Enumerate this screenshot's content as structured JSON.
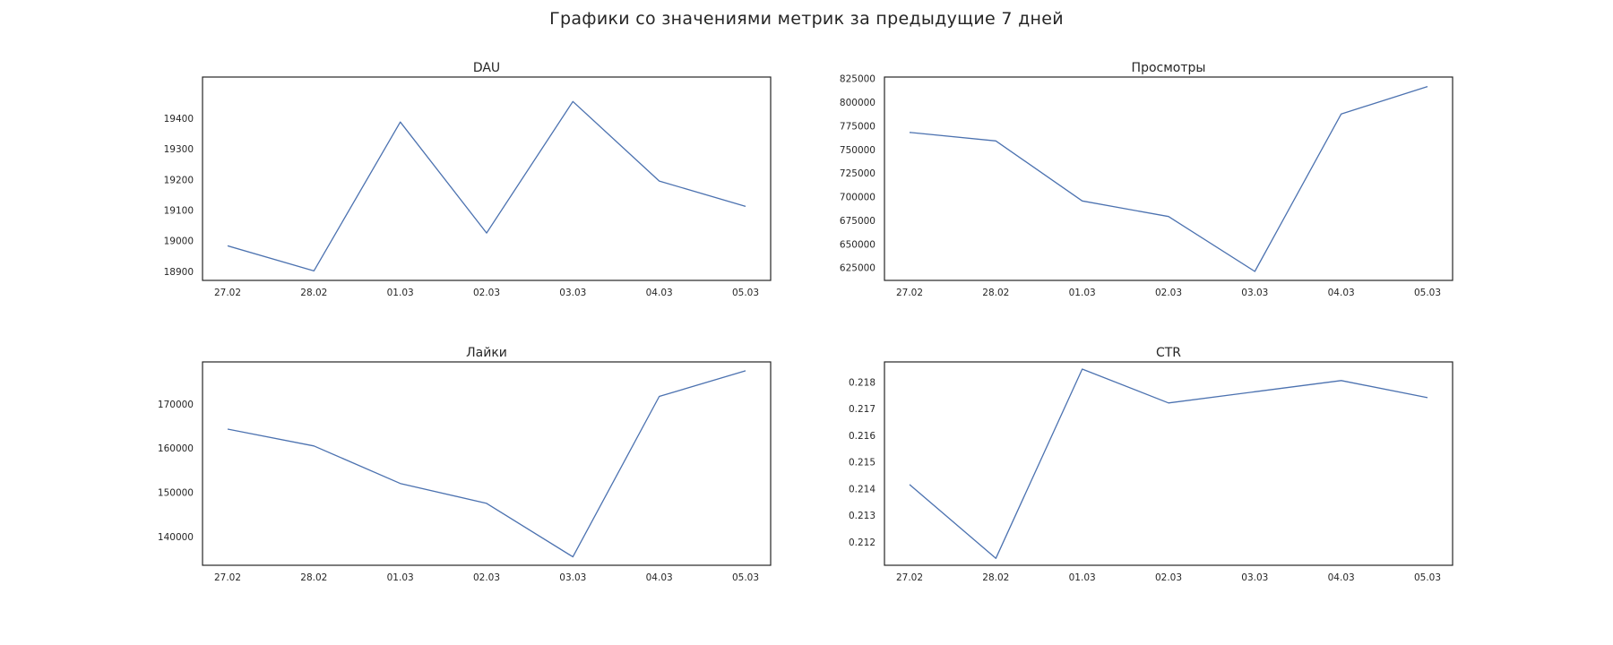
{
  "suptitle": "Графики со значениями метрик за предыдущие 7 дней",
  "colors": {
    "line": "#4c72b0",
    "frame": "#262626"
  },
  "chart_data": [
    {
      "type": "line",
      "title": "DAU",
      "categories": [
        "27.02",
        "28.02",
        "01.03",
        "02.03",
        "03.03",
        "04.03",
        "05.03"
      ],
      "series": [
        {
          "values": [
            18983,
            18901,
            19388,
            19025,
            19455,
            19195,
            19112
          ]
        }
      ],
      "ylim": [
        18870,
        19535
      ],
      "yticks": [
        18900,
        19000,
        19100,
        19200,
        19300,
        19400
      ],
      "ytick_labels": [
        "18900",
        "19000",
        "19100",
        "19200",
        "19300",
        "19400"
      ],
      "grid": false
    },
    {
      "type": "line",
      "title": "Просмотры",
      "categories": [
        "27.02",
        "28.02",
        "01.03",
        "02.03",
        "03.03",
        "04.03",
        "05.03"
      ],
      "series": [
        {
          "values": [
            768000,
            759000,
            695500,
            679000,
            621000,
            787500,
            816500
          ]
        }
      ],
      "ylim": [
        611500,
        826500
      ],
      "yticks": [
        625000,
        650000,
        675000,
        700000,
        725000,
        750000,
        775000,
        800000,
        825000
      ],
      "ytick_labels": [
        "625000",
        "650000",
        "675000",
        "700000",
        "725000",
        "750000",
        "775000",
        "800000",
        "825000"
      ],
      "grid": false
    },
    {
      "type": "line",
      "title": "Лайки",
      "categories": [
        "27.02",
        "28.02",
        "01.03",
        "02.03",
        "03.03",
        "04.03",
        "05.03"
      ],
      "series": [
        {
          "values": [
            164300,
            160500,
            152000,
            147500,
            135400,
            171700,
            177500
          ]
        }
      ],
      "ylim": [
        133500,
        179500
      ],
      "yticks": [
        140000,
        150000,
        160000,
        170000
      ],
      "ytick_labels": [
        "140000",
        "150000",
        "160000",
        "170000"
      ],
      "grid": false
    },
    {
      "type": "line",
      "title": "CTR",
      "categories": [
        "27.02",
        "28.02",
        "01.03",
        "02.03",
        "03.03",
        "04.03",
        "05.03"
      ],
      "series": [
        {
          "values": [
            0.21415,
            0.21138,
            0.21848,
            0.21721,
            0.21763,
            0.21805,
            0.21741
          ]
        }
      ],
      "ylim": [
        0.21112,
        0.21875
      ],
      "yticks": [
        0.212,
        0.213,
        0.214,
        0.215,
        0.216,
        0.217,
        0.218
      ],
      "ytick_labels": [
        "0.212",
        "0.213",
        "0.214",
        "0.215",
        "0.216",
        "0.217",
        "0.218"
      ],
      "grid": false
    }
  ]
}
